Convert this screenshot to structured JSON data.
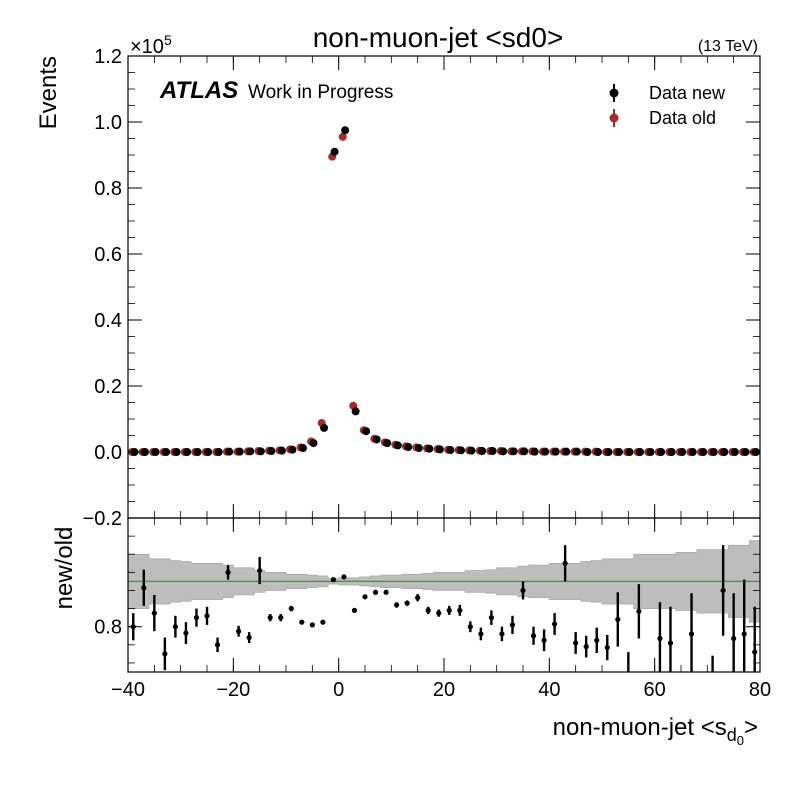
{
  "chart_data": [
    {
      "type": "scatter",
      "title": "non-muon-jet <sd0>",
      "energy_label": "(13 TeV)",
      "atlas_label": "ATLAS",
      "atlas_sublabel": "Work in Progress",
      "ylabel": "Events",
      "scale_label": "×10",
      "scale_exponent": "5",
      "ylim": [
        -0.2,
        1.2
      ],
      "xlim": [
        -40,
        80
      ],
      "y_ticks": [
        "−0.2",
        "0.0",
        "0.2",
        "0.4",
        "0.6",
        "0.8",
        "1.0",
        "1.2"
      ],
      "y_tick_values": [
        -0.2,
        0.0,
        0.2,
        0.4,
        0.6,
        0.8,
        1.0,
        1.2
      ],
      "legend_position": "top-right",
      "colors": {
        "data_new": "#000000",
        "data_old": "#a52a2a"
      },
      "x": [
        -39,
        -37,
        -35,
        -33,
        -31,
        -29,
        -27,
        -25,
        -23,
        -21,
        -19,
        -17,
        -15,
        -13,
        -11,
        -9,
        -7,
        -5,
        -3,
        -1,
        1,
        3,
        5,
        7,
        9,
        11,
        13,
        15,
        17,
        19,
        21,
        23,
        25,
        27,
        29,
        31,
        33,
        35,
        37,
        39,
        41,
        43,
        45,
        47,
        49,
        51,
        53,
        55,
        57,
        59,
        61,
        63,
        65,
        67,
        69,
        71,
        73,
        75,
        77,
        79
      ],
      "series": [
        {
          "name": "Data new",
          "values": [
            0.0,
            0.0,
            0.0,
            0.0,
            0.0,
            0.0,
            0.0,
            0.0,
            0.0,
            0.001,
            0.001,
            0.002,
            0.002,
            0.003,
            0.004,
            0.007,
            0.012,
            0.027,
            0.073,
            0.91,
            0.975,
            0.123,
            0.063,
            0.038,
            0.027,
            0.02,
            0.015,
            0.012,
            0.01,
            0.008,
            0.006,
            0.005,
            0.004,
            0.003,
            0.003,
            0.002,
            0.002,
            0.002,
            0.001,
            0.001,
            0.001,
            0.001,
            0.001,
            0.0,
            0.0,
            0.0,
            0.0,
            0.0,
            0.0,
            0.0,
            0.0,
            0.0,
            0.0,
            0.0,
            0.0,
            0.0,
            0.0,
            0.0,
            0.0,
            0.0
          ]
        },
        {
          "name": "Data old",
          "values": [
            0.0,
            0.0,
            0.0,
            0.0,
            0.0,
            0.0,
            0.0,
            0.0,
            0.0,
            0.001,
            0.001,
            0.002,
            0.003,
            0.004,
            0.005,
            0.008,
            0.014,
            0.032,
            0.088,
            0.895,
            0.955,
            0.14,
            0.066,
            0.04,
            0.029,
            0.022,
            0.017,
            0.014,
            0.011,
            0.009,
            0.007,
            0.006,
            0.005,
            0.004,
            0.003,
            0.003,
            0.002,
            0.002,
            0.002,
            0.001,
            0.001,
            0.001,
            0.001,
            0.001,
            0.001,
            0.0,
            0.0,
            0.0,
            0.0,
            0.0,
            0.0,
            0.0,
            0.0,
            0.0,
            0.0,
            0.0,
            0.0,
            0.0,
            0.0,
            0.0
          ]
        }
      ]
    },
    {
      "type": "scatter",
      "ylabel": "new/old",
      "xlabel": "non-muon-jet <s",
      "xlabel_sub": "d",
      "xlabel_subsub": "0",
      "xlabel_end": ">",
      "xlim": [
        -40,
        80
      ],
      "ylim": [
        0.75,
        0.92
      ],
      "reference_line": 0.85,
      "y_ticks": [
        "0.8"
      ],
      "y_tick_values": [
        0.8
      ],
      "x_ticks": [
        "−40",
        "−20",
        "0",
        "20",
        "40",
        "60",
        "80"
      ],
      "x_tick_values": [
        -40,
        -20,
        0,
        20,
        40,
        60,
        80
      ],
      "colors": {
        "band": "#bdbdbd",
        "line": "#2ca02c",
        "points": "#000000"
      },
      "x": [
        -39,
        -37,
        -35,
        -33,
        -31,
        -29,
        -27,
        -25,
        -23,
        -21,
        -19,
        -17,
        -15,
        -13,
        -11,
        -9,
        -7,
        -5,
        -3,
        -1,
        1,
        3,
        5,
        7,
        9,
        11,
        13,
        15,
        17,
        19,
        21,
        23,
        25,
        27,
        29,
        31,
        33,
        35,
        37,
        39,
        41,
        43,
        45,
        47,
        49,
        51,
        53,
        55,
        57,
        59,
        61,
        63,
        65,
        67,
        69,
        71,
        73,
        75,
        77,
        79
      ],
      "ratio": [
        0.8,
        0.843,
        0.815,
        0.77,
        0.8,
        0.793,
        0.81,
        0.812,
        0.78,
        0.86,
        0.795,
        0.788,
        0.862,
        0.81,
        0.81,
        0.82,
        0.805,
        0.802,
        0.805,
        0.852,
        0.855,
        0.818,
        0.833,
        0.838,
        0.838,
        0.824,
        0.826,
        0.832,
        0.818,
        0.815,
        0.818,
        0.818,
        0.8,
        0.792,
        0.81,
        0.792,
        0.802,
        0.84,
        0.79,
        0.785,
        0.803,
        0.87,
        0.782,
        0.778,
        0.785,
        0.777,
        0.808,
        0.742,
        0.817,
        0.71,
        0.787,
        0.782,
        0.705,
        0.792,
        0.675,
        0.718,
        0.84,
        0.787,
        0.792,
        0.772
      ],
      "ratio_err": [
        0.015,
        0.02,
        0.02,
        0.018,
        0.012,
        0.012,
        0.01,
        0.01,
        0.008,
        0.008,
        0.006,
        0.006,
        0.015,
        0.004,
        0.004,
        0.003,
        0.002,
        0.001,
        0.001,
        0.001,
        0.001,
        0.001,
        0.001,
        0.002,
        0.002,
        0.003,
        0.003,
        0.004,
        0.004,
        0.004,
        0.005,
        0.006,
        0.006,
        0.007,
        0.008,
        0.008,
        0.01,
        0.01,
        0.01,
        0.012,
        0.012,
        0.02,
        0.012,
        0.012,
        0.014,
        0.014,
        0.03,
        0.03,
        0.03,
        0.03,
        0.04,
        0.04,
        0.045,
        0.045,
        0.05,
        0.05,
        0.05,
        0.05,
        0.06,
        0.05
      ],
      "band_half_width": [
        0.03,
        0.03,
        0.025,
        0.025,
        0.023,
        0.022,
        0.02,
        0.02,
        0.02,
        0.018,
        0.015,
        0.015,
        0.012,
        0.01,
        0.01,
        0.008,
        0.008,
        0.007,
        0.006,
        0.003,
        0.004,
        0.004,
        0.005,
        0.006,
        0.007,
        0.007,
        0.008,
        0.008,
        0.009,
        0.01,
        0.01,
        0.01,
        0.012,
        0.012,
        0.013,
        0.015,
        0.015,
        0.017,
        0.018,
        0.018,
        0.02,
        0.02,
        0.02,
        0.022,
        0.023,
        0.025,
        0.025,
        0.025,
        0.03,
        0.03,
        0.03,
        0.03,
        0.032,
        0.032,
        0.035,
        0.035,
        0.035,
        0.04,
        0.04,
        0.045
      ]
    }
  ]
}
